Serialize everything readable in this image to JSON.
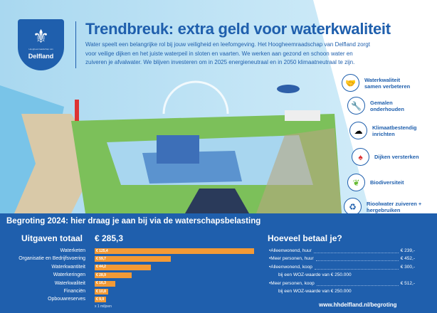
{
  "logo": {
    "small_text": "Hoogheemraadschap van",
    "name": "Delfland"
  },
  "header": {
    "title": "Trendbreuk: extra geld voor waterkwaliteit",
    "intro": "Water speelt een belangrijke rol bij jouw veiligheid en leefomgeving. Het Hoogheemraadschap van Delfland zorgt voor veilige dijken en het juiste waterpeil in sloten en vaarten. We werken aan gezond en schoon water en zuiveren je afvalwater. We blijven investeren om in 2025 energieneutraal en in 2050 klimaatneutraal te zijn."
  },
  "goals": [
    {
      "icon": "handshake-icon",
      "label": "Waterkwaliteit samen verbeteren"
    },
    {
      "icon": "tools-icon",
      "label": "Gemalen onderhouden"
    },
    {
      "icon": "rain-cloud-icon",
      "label": "Klimaatbestendig inrichten"
    },
    {
      "icon": "shovel-icon",
      "label": "Dijken versterken"
    },
    {
      "icon": "bee-leaf-icon",
      "label": "Biodiversiteit"
    },
    {
      "icon": "recycle-water-icon",
      "label": "Rioolwater zuiveren + hergebruiken"
    }
  ],
  "budget": {
    "title": "Begroting 2024: hier draag je aan bij via de waterschapsbelasting",
    "spend_title": "Uitgaven totaal",
    "total": "€ 285,3",
    "unit": "x 1 miljoen"
  },
  "chart_data": {
    "type": "bar",
    "orientation": "horizontal",
    "title": "Uitgaven totaal",
    "unit": "x 1 miljoen",
    "bar_color": "#f39a36",
    "categories": [
      "Waterketen",
      "Organisatie en Bedrijfsvoering",
      "Waterkwantiteit",
      "Waterkeringen",
      "Waterkwaliteit",
      "Financiën",
      "Opbouwreserves"
    ],
    "values": [
      125.4,
      59.7,
      44.2,
      28.9,
      16.3,
      10.8,
      9.0
    ],
    "labels": [
      "€ 125,4",
      "€ 59,7",
      "€ 44,2",
      "€ 28,9",
      "€ 16,3",
      "€ 10,8",
      "€ 9,0"
    ]
  },
  "payment": {
    "title": "Hoeveel betaal je?",
    "rows": [
      {
        "label": "Alleenwonend, huur",
        "amount": "€ 239,-"
      },
      {
        "label": "Meer personen, huur",
        "amount": "€ 452,-"
      },
      {
        "label": "Alleenwonend, koop",
        "amount": "€ 300,-",
        "note": "bij een WOZ-waarde van € 250.000"
      },
      {
        "label": "Meer personen, koop",
        "amount": "€ 512,-",
        "note": "bij een WOZ-waarde van € 250.000"
      }
    ]
  },
  "url": "www.hhdelfland.nl/begroting",
  "colors": {
    "brand_blue": "#1f5fad",
    "bar_orange": "#f39a36"
  }
}
